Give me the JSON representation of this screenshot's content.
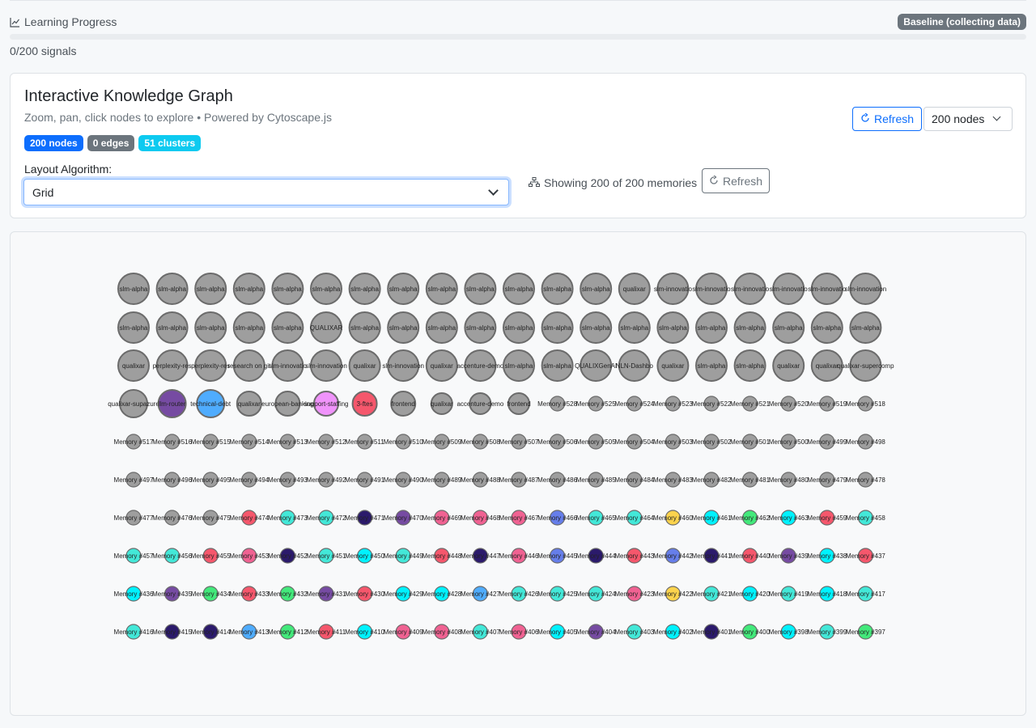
{
  "learning": {
    "title": "Learning Progress",
    "badge": "Baseline (collecting data)",
    "count_text": "0/200 signals",
    "progress_fraction": 0
  },
  "card": {
    "title": "Interactive Knowledge Graph",
    "subtitle": "Zoom, pan, click nodes to explore • Powered by Cytoscape.js",
    "badges": {
      "nodes": "200 nodes",
      "edges": "0 edges",
      "clusters": "51 clusters"
    },
    "layout_label": "Layout Algorithm:",
    "layout_value": "Grid",
    "showing_text": "Showing 200 of 200 memories",
    "refresh_label": "Refresh",
    "refresh_top_label": "Refresh",
    "node_count_value": "200 nodes"
  },
  "colors": {
    "gray": "#9e9e9e",
    "purple": "#764ba2",
    "blue": "#4facfe",
    "pink": "#f093fb",
    "red": "#f5576c",
    "teal": "#43e8d8",
    "navy": "#2b1a6b",
    "rose": "#f06292",
    "indigo": "#667eea",
    "yellow": "#fcd34d",
    "cyan": "#00f2fe",
    "green": "#43e97b"
  },
  "graph": {
    "rows": [
      {
        "size": "large",
        "nodes": [
          {
            "label": "slm-alpha",
            "color": "gray"
          },
          {
            "label": "slm-alpha",
            "color": "gray"
          },
          {
            "label": "slm-alpha",
            "color": "gray"
          },
          {
            "label": "slm-alpha",
            "color": "gray"
          },
          {
            "label": "slm-alpha",
            "color": "gray"
          },
          {
            "label": "slm-alpha",
            "color": "gray"
          },
          {
            "label": "slm-alpha",
            "color": "gray"
          },
          {
            "label": "slm-alpha",
            "color": "gray"
          },
          {
            "label": "slm-alpha",
            "color": "gray"
          },
          {
            "label": "slm-alpha",
            "color": "gray"
          },
          {
            "label": "slm-alpha",
            "color": "gray"
          },
          {
            "label": "slm-alpha",
            "color": "gray"
          },
          {
            "label": "slm-alpha",
            "color": "gray"
          },
          {
            "label": "qualixar",
            "color": "gray"
          },
          {
            "label": "slm-innovatio",
            "color": "gray"
          },
          {
            "label": "slm-innovatio",
            "color": "gray"
          },
          {
            "label": "slm-innovatio",
            "color": "gray"
          },
          {
            "label": "slm-innovatio",
            "color": "gray"
          },
          {
            "label": "slm-innovatio",
            "color": "gray"
          },
          {
            "label": "slm-innovation",
            "color": "gray"
          }
        ]
      },
      {
        "size": "large",
        "nodes": [
          {
            "label": "slm-alpha",
            "color": "gray"
          },
          {
            "label": "slm-alpha",
            "color": "gray"
          },
          {
            "label": "slm-alpha",
            "color": "gray"
          },
          {
            "label": "slm-alpha",
            "color": "gray"
          },
          {
            "label": "slm-alpha",
            "color": "gray"
          },
          {
            "label": "QUALIXAR",
            "color": "gray"
          },
          {
            "label": "slm-alpha",
            "color": "gray"
          },
          {
            "label": "slm-alpha",
            "color": "gray"
          },
          {
            "label": "slm-alpha",
            "color": "gray"
          },
          {
            "label": "slm-alpha",
            "color": "gray"
          },
          {
            "label": "slm-alpha",
            "color": "gray"
          },
          {
            "label": "slm-alpha",
            "color": "gray"
          },
          {
            "label": "slm-alpha",
            "color": "gray"
          },
          {
            "label": "slm-alpha",
            "color": "gray"
          },
          {
            "label": "slm-alpha",
            "color": "gray"
          },
          {
            "label": "slm-alpha",
            "color": "gray"
          },
          {
            "label": "slm-alpha",
            "color": "gray"
          },
          {
            "label": "slm-alpha",
            "color": "gray"
          },
          {
            "label": "slm-alpha",
            "color": "gray"
          },
          {
            "label": "slm-alpha",
            "color": "gray"
          }
        ]
      },
      {
        "size": "large",
        "nodes": [
          {
            "label": "qualixar",
            "color": "gray"
          },
          {
            "label": "perplexity-res",
            "color": "gray"
          },
          {
            "label": "perplexity-res",
            "color": "gray"
          },
          {
            "label": "research on git",
            "color": "gray"
          },
          {
            "label": "slm-innovatio",
            "color": "gray"
          },
          {
            "label": "slm-innovation",
            "color": "gray"
          },
          {
            "label": "qualixar",
            "color": "gray"
          },
          {
            "label": "slm-innovation",
            "color": "gray"
          },
          {
            "label": "qualixar",
            "color": "gray"
          },
          {
            "label": "accenture-demo",
            "color": "gray"
          },
          {
            "label": "slm-alpha",
            "color": "gray"
          },
          {
            "label": "slm-alpha",
            "color": "gray"
          },
          {
            "label": "QUALIXGenAI",
            "color": "gray"
          },
          {
            "label": "NLN-Dashbo",
            "color": "gray"
          },
          {
            "label": "qualixar",
            "color": "gray"
          },
          {
            "label": "slm-alpha",
            "color": "gray"
          },
          {
            "label": "slm-alpha",
            "color": "gray"
          },
          {
            "label": "qualixar",
            "color": "gray"
          },
          {
            "label": "qualixar",
            "color": "gray"
          },
          {
            "label": "qualixar-supercomp",
            "color": "gray"
          }
        ]
      },
      {
        "size": "mixed",
        "nodes": [
          {
            "label": "qualixar-supazure",
            "color": "gray",
            "r": 17
          },
          {
            "label": "llm-router",
            "color": "purple",
            "r": 17
          },
          {
            "label": "technical-debt",
            "color": "blue",
            "r": 17
          },
          {
            "label": "qualixar",
            "color": "gray",
            "r": 15
          },
          {
            "label": "european-banking",
            "color": "gray",
            "r": 15
          },
          {
            "label": "support-staffing",
            "color": "pink",
            "r": 15
          },
          {
            "label": "3-ftes",
            "color": "red",
            "r": 15
          },
          {
            "label": "frontend",
            "color": "gray",
            "r": 15
          },
          {
            "label": "qualixar",
            "color": "gray",
            "r": 13
          },
          {
            "label": "accenture-demo",
            "color": "gray",
            "r": 13
          },
          {
            "label": "frontend",
            "color": "gray",
            "r": 13
          },
          {
            "label": "Memory #528",
            "color": "gray",
            "r": 9
          },
          {
            "label": "Memory #525",
            "color": "gray",
            "r": 9
          },
          {
            "label": "Memory #524",
            "color": "gray",
            "r": 9
          },
          {
            "label": "Memory #523",
            "color": "gray",
            "r": 9
          },
          {
            "label": "Memory #522",
            "color": "gray",
            "r": 9
          },
          {
            "label": "Memory #521",
            "color": "gray",
            "r": 9
          },
          {
            "label": "Memory #520",
            "color": "gray",
            "r": 9
          },
          {
            "label": "Memory #519",
            "color": "gray",
            "r": 9
          },
          {
            "label": "Memory #518",
            "color": "gray",
            "r": 9
          }
        ]
      },
      {
        "size": "small",
        "nodes": [
          {
            "label": "Memory #517",
            "color": "gray"
          },
          {
            "label": "Memory #516",
            "color": "gray"
          },
          {
            "label": "Memory #515",
            "color": "gray"
          },
          {
            "label": "Memory #514",
            "color": "gray"
          },
          {
            "label": "Memory #513",
            "color": "gray"
          },
          {
            "label": "Memory #512",
            "color": "gray"
          },
          {
            "label": "Memory #511",
            "color": "gray"
          },
          {
            "label": "Memory #510",
            "color": "gray"
          },
          {
            "label": "Memory #509",
            "color": "gray"
          },
          {
            "label": "Memory #508",
            "color": "gray"
          },
          {
            "label": "Memory #507",
            "color": "gray"
          },
          {
            "label": "Memory #506",
            "color": "gray"
          },
          {
            "label": "Memory #505",
            "color": "gray"
          },
          {
            "label": "Memory #504",
            "color": "gray"
          },
          {
            "label": "Memory #503",
            "color": "gray"
          },
          {
            "label": "Memory #502",
            "color": "gray"
          },
          {
            "label": "Memory #501",
            "color": "gray"
          },
          {
            "label": "Memory #500",
            "color": "gray"
          },
          {
            "label": "Memory #499",
            "color": "gray"
          },
          {
            "label": "Memory #498",
            "color": "gray"
          }
        ]
      },
      {
        "size": "small",
        "nodes": [
          {
            "label": "Memory #497",
            "color": "gray"
          },
          {
            "label": "Memory #496",
            "color": "gray"
          },
          {
            "label": "Memory #495",
            "color": "gray"
          },
          {
            "label": "Memory #494",
            "color": "gray"
          },
          {
            "label": "Memory #493",
            "color": "gray"
          },
          {
            "label": "Memory #492",
            "color": "gray"
          },
          {
            "label": "Memory #491",
            "color": "gray"
          },
          {
            "label": "Memory #490",
            "color": "gray"
          },
          {
            "label": "Memory #489",
            "color": "gray"
          },
          {
            "label": "Memory #488",
            "color": "gray"
          },
          {
            "label": "Memory #487",
            "color": "gray"
          },
          {
            "label": "Memory #486",
            "color": "gray"
          },
          {
            "label": "Memory #485",
            "color": "gray"
          },
          {
            "label": "Memory #484",
            "color": "gray"
          },
          {
            "label": "Memory #483",
            "color": "gray"
          },
          {
            "label": "Memory #482",
            "color": "gray"
          },
          {
            "label": "Memory #481",
            "color": "gray"
          },
          {
            "label": "Memory #480",
            "color": "gray"
          },
          {
            "label": "Memory #479",
            "color": "gray"
          },
          {
            "label": "Memory #478",
            "color": "gray"
          }
        ]
      },
      {
        "size": "small",
        "nodes": [
          {
            "label": "Memory #477",
            "color": "gray"
          },
          {
            "label": "Memory #476",
            "color": "gray"
          },
          {
            "label": "Memory #475",
            "color": "gray"
          },
          {
            "label": "Memory #474",
            "color": "red"
          },
          {
            "label": "Memory #473",
            "color": "teal"
          },
          {
            "label": "Memory #472",
            "color": "teal"
          },
          {
            "label": "Memory #471",
            "color": "navy"
          },
          {
            "label": "Memory #470",
            "color": "purple"
          },
          {
            "label": "Memory #469",
            "color": "rose"
          },
          {
            "label": "Memory #468",
            "color": "rose"
          },
          {
            "label": "Memory #467",
            "color": "rose"
          },
          {
            "label": "Memory #466",
            "color": "indigo"
          },
          {
            "label": "Memory #465",
            "color": "teal"
          },
          {
            "label": "Memory #464",
            "color": "teal"
          },
          {
            "label": "Memory #460",
            "color": "yellow"
          },
          {
            "label": "Memory #461",
            "color": "cyan"
          },
          {
            "label": "Memory #462",
            "color": "green"
          },
          {
            "label": "Memory #463",
            "color": "cyan"
          },
          {
            "label": "Memory #459",
            "color": "red"
          },
          {
            "label": "Memory #458",
            "color": "teal"
          }
        ]
      },
      {
        "size": "small",
        "nodes": [
          {
            "label": "Memory #457",
            "color": "teal"
          },
          {
            "label": "Memory #456",
            "color": "teal"
          },
          {
            "label": "Memory #455",
            "color": "red"
          },
          {
            "label": "Memory #453",
            "color": "rose"
          },
          {
            "label": "Memory #452",
            "color": "navy"
          },
          {
            "label": "Memory #451",
            "color": "teal"
          },
          {
            "label": "Memory #450",
            "color": "cyan"
          },
          {
            "label": "Memory #449",
            "color": "teal"
          },
          {
            "label": "Memory #448",
            "color": "red"
          },
          {
            "label": "Memory #447",
            "color": "navy"
          },
          {
            "label": "Memory #446",
            "color": "rose"
          },
          {
            "label": "Memory #445",
            "color": "indigo"
          },
          {
            "label": "Memory #444",
            "color": "navy"
          },
          {
            "label": "Memory #443",
            "color": "red"
          },
          {
            "label": "Memory #442",
            "color": "indigo"
          },
          {
            "label": "Memory #441",
            "color": "navy"
          },
          {
            "label": "Memory #440",
            "color": "red"
          },
          {
            "label": "Memory #439",
            "color": "purple"
          },
          {
            "label": "Memory #438",
            "color": "cyan"
          },
          {
            "label": "Memory #437",
            "color": "red"
          }
        ]
      },
      {
        "size": "small",
        "nodes": [
          {
            "label": "Memory #436",
            "color": "cyan"
          },
          {
            "label": "Memory #435",
            "color": "purple"
          },
          {
            "label": "Memory #434",
            "color": "green"
          },
          {
            "label": "Memory #433",
            "color": "red"
          },
          {
            "label": "Memory #432",
            "color": "green"
          },
          {
            "label": "Memory #431",
            "color": "purple"
          },
          {
            "label": "Memory #430",
            "color": "red"
          },
          {
            "label": "Memory #429",
            "color": "cyan"
          },
          {
            "label": "Memory #428",
            "color": "cyan"
          },
          {
            "label": "Memory #427",
            "color": "blue"
          },
          {
            "label": "Memory #426",
            "color": "teal"
          },
          {
            "label": "Memory #425",
            "color": "teal"
          },
          {
            "label": "Memory #424",
            "color": "teal"
          },
          {
            "label": "Memory #423",
            "color": "rose"
          },
          {
            "label": "Memory #422",
            "color": "yellow"
          },
          {
            "label": "Memory #421",
            "color": "teal"
          },
          {
            "label": "Memory #420",
            "color": "cyan"
          },
          {
            "label": "Memory #419",
            "color": "teal"
          },
          {
            "label": "Memory #418",
            "color": "cyan"
          },
          {
            "label": "Memory #417",
            "color": "teal"
          }
        ]
      },
      {
        "size": "small",
        "nodes": [
          {
            "label": "Memory #416",
            "color": "teal"
          },
          {
            "label": "Memory #415",
            "color": "navy"
          },
          {
            "label": "Memory #414",
            "color": "navy"
          },
          {
            "label": "Memory #413",
            "color": "blue"
          },
          {
            "label": "Memory #412",
            "color": "green"
          },
          {
            "label": "Memory #411",
            "color": "red"
          },
          {
            "label": "Memory #410",
            "color": "cyan"
          },
          {
            "label": "Memory #409",
            "color": "rose"
          },
          {
            "label": "Memory #408",
            "color": "rose"
          },
          {
            "label": "Memory #407",
            "color": "teal"
          },
          {
            "label": "Memory #406",
            "color": "rose"
          },
          {
            "label": "Memory #405",
            "color": "cyan"
          },
          {
            "label": "Memory #404",
            "color": "purple"
          },
          {
            "label": "Memory #403",
            "color": "teal"
          },
          {
            "label": "Memory #402",
            "color": "cyan"
          },
          {
            "label": "Memory #401",
            "color": "navy"
          },
          {
            "label": "Memory #400",
            "color": "green"
          },
          {
            "label": "Memory #398",
            "color": "cyan"
          },
          {
            "label": "Memory #399",
            "color": "teal"
          },
          {
            "label": "Memory #397",
            "color": "green"
          }
        ]
      }
    ]
  }
}
